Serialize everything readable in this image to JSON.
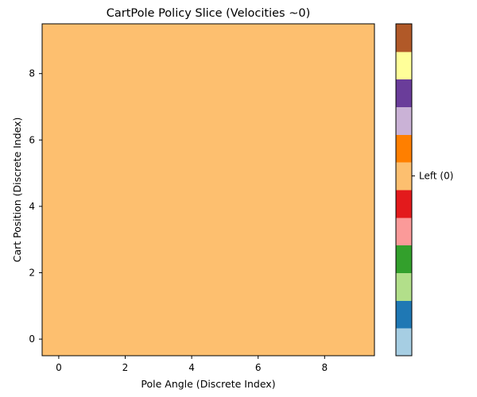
{
  "chart_data": {
    "type": "heatmap",
    "title": "CartPole Policy Slice (Velocities ~0)",
    "xlabel": "Pole Angle (Discrete Index)",
    "ylabel": "Cart Position (Discrete Index)",
    "xlim": [
      -0.5,
      9.5
    ],
    "ylim": [
      -0.5,
      9.5
    ],
    "xticks": [
      0,
      2,
      4,
      6,
      8
    ],
    "yticks": [
      0,
      2,
      4,
      6,
      8
    ],
    "grid": false,
    "rows": 10,
    "cols": 10,
    "values": [
      [
        0,
        0,
        0,
        0,
        0,
        0,
        0,
        0,
        0,
        0
      ],
      [
        0,
        0,
        0,
        0,
        0,
        0,
        0,
        0,
        0,
        0
      ],
      [
        0,
        0,
        0,
        0,
        0,
        0,
        0,
        0,
        0,
        0
      ],
      [
        0,
        0,
        0,
        0,
        0,
        0,
        0,
        0,
        0,
        0
      ],
      [
        0,
        0,
        0,
        0,
        0,
        0,
        0,
        0,
        0,
        0
      ],
      [
        0,
        0,
        0,
        0,
        0,
        0,
        0,
        0,
        0,
        0
      ],
      [
        0,
        0,
        0,
        0,
        0,
        0,
        0,
        0,
        0,
        0
      ],
      [
        0,
        0,
        0,
        0,
        0,
        0,
        0,
        0,
        0,
        0
      ],
      [
        0,
        0,
        0,
        0,
        0,
        0,
        0,
        0,
        0,
        0
      ],
      [
        0,
        0,
        0,
        0,
        0,
        0,
        0,
        0,
        0,
        0
      ]
    ],
    "value_color": "#fdbf6f",
    "colorbar": {
      "colors": [
        "#a6cee3",
        "#1f78b4",
        "#b2df8a",
        "#33a02c",
        "#fb9a99",
        "#e31a1c",
        "#fdbf6f",
        "#ff7f00",
        "#cab2d6",
        "#6a3d9a",
        "#ffff99",
        "#b15928"
      ],
      "tick_label": "Left (0)",
      "tick_segment": 6
    }
  }
}
